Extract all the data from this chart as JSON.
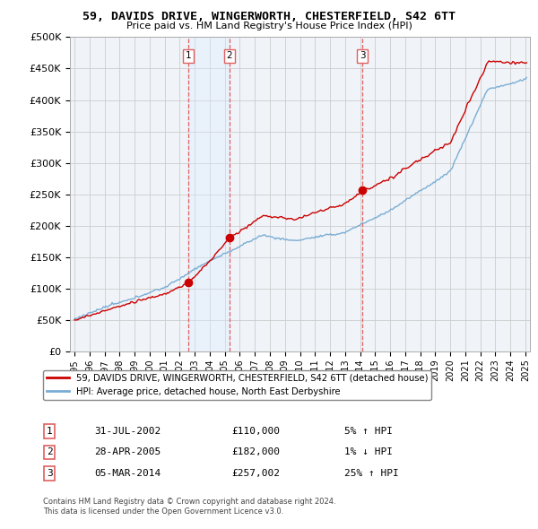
{
  "title": "59, DAVIDS DRIVE, WINGERWORTH, CHESTERFIELD, S42 6TT",
  "subtitle": "Price paid vs. HM Land Registry's House Price Index (HPI)",
  "ylim": [
    0,
    500000
  ],
  "yticks": [
    0,
    50000,
    100000,
    150000,
    200000,
    250000,
    300000,
    350000,
    400000,
    450000,
    500000
  ],
  "ytick_labels": [
    "£0",
    "£50K",
    "£100K",
    "£150K",
    "£200K",
    "£250K",
    "£300K",
    "£350K",
    "£400K",
    "£450K",
    "£500K"
  ],
  "xlim_start": 1994.7,
  "xlim_end": 2025.3,
  "sales": [
    {
      "year": 2002.58,
      "price": 110000,
      "label": "1",
      "date": "31-JUL-2002",
      "price_str": "£110,000",
      "hpi_diff": "5% ↑ HPI"
    },
    {
      "year": 2005.32,
      "price": 182000,
      "label": "2",
      "date": "28-APR-2005",
      "price_str": "£182,000",
      "hpi_diff": "1% ↓ HPI"
    },
    {
      "year": 2014.17,
      "price": 257002,
      "label": "3",
      "date": "05-MAR-2014",
      "price_str": "£257,002",
      "hpi_diff": "25% ↑ HPI"
    }
  ],
  "red_line_color": "#cc0000",
  "blue_line_color": "#7aadd4",
  "sale_marker_color": "#cc0000",
  "vline_color": "#e06060",
  "grid_color": "#cccccc",
  "bg_color": "#f0f4f8",
  "shade_color": "#ddeeff",
  "legend_line1": "59, DAVIDS DRIVE, WINGERWORTH, CHESTERFIELD, S42 6TT (detached house)",
  "legend_line2": "HPI: Average price, detached house, North East Derbyshire",
  "footer1": "Contains HM Land Registry data © Crown copyright and database right 2024.",
  "footer2": "This data is licensed under the Open Government Licence v3.0."
}
